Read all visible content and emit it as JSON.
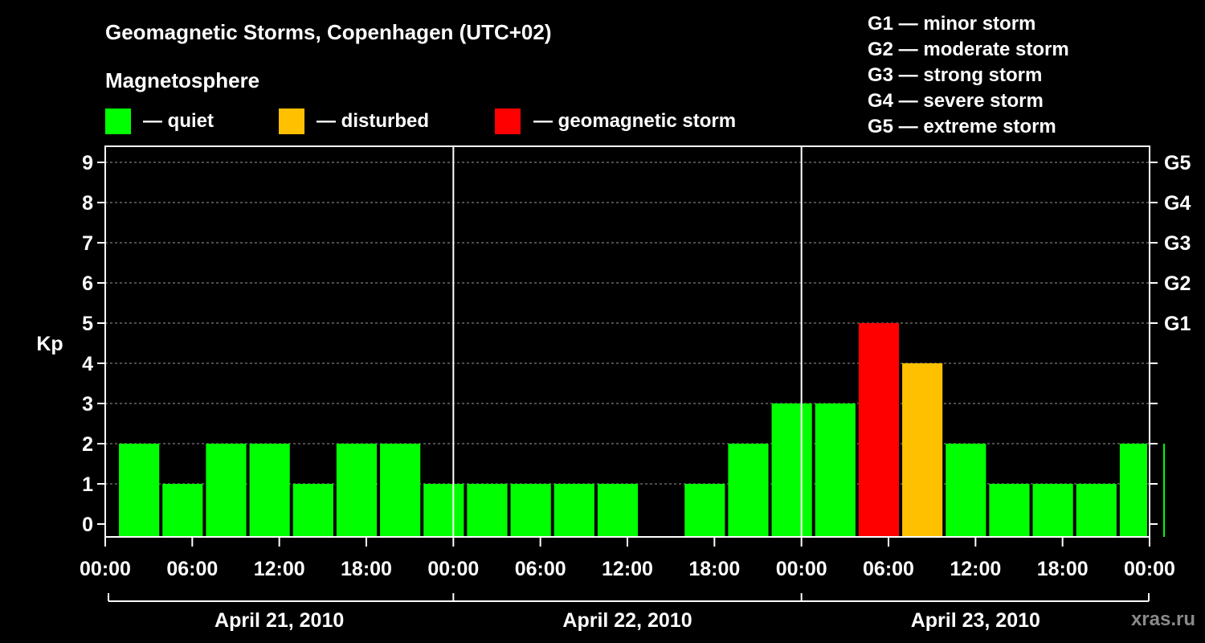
{
  "header": {
    "title": "Geomagnetic Storms, Copenhagen (UTC+02)",
    "subtitle": "Magnetosphere",
    "legend": [
      {
        "label": "— quiet",
        "color": "#00ff00"
      },
      {
        "label": "— disturbed",
        "color": "#ffc000"
      },
      {
        "label": "— geomagnetic storm",
        "color": "#ff0000"
      }
    ]
  },
  "storm_scale": [
    "G1 — minor storm",
    "G2 — moderate storm",
    "G3 — strong storm",
    "G4 — severe storm",
    "G5 — extreme storm"
  ],
  "watermark": "xras.ru",
  "chart_data": {
    "type": "bar",
    "title": "Geomagnetic Storms, Copenhagen (UTC+02)",
    "ylabel": "Kp",
    "ylim": [
      0,
      9
    ],
    "y_ticks": [
      "0",
      "1",
      "2",
      "3",
      "4",
      "5",
      "6",
      "7",
      "8",
      "9"
    ],
    "right_axis_labels": [
      {
        "kp": 5,
        "label": "G1"
      },
      {
        "kp": 6,
        "label": "G2"
      },
      {
        "kp": 7,
        "label": "G3"
      },
      {
        "kp": 8,
        "label": "G4"
      },
      {
        "kp": 9,
        "label": "G5"
      }
    ],
    "time_range_hours": [
      0,
      72
    ],
    "x_tick_labels": [
      "00:00",
      "06:00",
      "12:00",
      "18:00",
      "00:00",
      "06:00",
      "12:00",
      "18:00",
      "00:00",
      "06:00",
      "12:00",
      "18:00",
      "00:00"
    ],
    "days": [
      "April 21, 2010",
      "April 22, 2010",
      "April 23, 2010"
    ],
    "interval_hours": 3,
    "bar_start_offset_hours": 1,
    "values": [
      2,
      1,
      2,
      2,
      1,
      2,
      2,
      1,
      1,
      1,
      1,
      1,
      0,
      1,
      2,
      3,
      3,
      5,
      4,
      2,
      1,
      1,
      1,
      2,
      2
    ],
    "colors": {
      "quiet": "#00ff00",
      "disturbed": "#ffc000",
      "storm": "#ff0000"
    },
    "grid": true
  }
}
